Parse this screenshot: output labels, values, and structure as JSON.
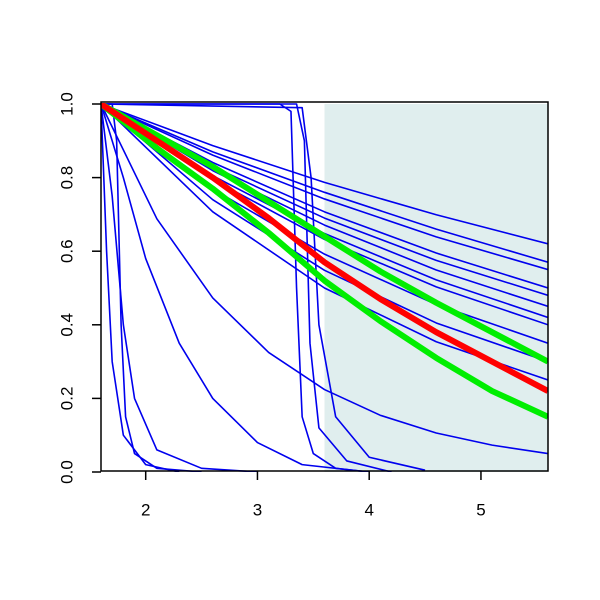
{
  "chart_data": {
    "type": "line",
    "xlim": [
      1.6,
      5.6
    ],
    "ylim": [
      0,
      1
    ],
    "xticks": [
      2,
      3,
      4,
      5
    ],
    "yticks": [
      {
        "value": 0,
        "label": "0.0"
      },
      {
        "value": 0.2,
        "label": "0.2"
      },
      {
        "value": 0.4,
        "label": "0.4"
      },
      {
        "value": 0.6,
        "label": "0.6"
      },
      {
        "value": 0.8,
        "label": "0.8"
      },
      {
        "value": 1,
        "label": "1.0"
      }
    ],
    "shaded_region": {
      "x": [
        3.6,
        5.6
      ],
      "y": [
        0,
        1
      ],
      "color": "#e0eeee"
    },
    "series": [
      {
        "color": "#0000ee",
        "x": [
          1.6,
          2.6,
          3.6,
          4.6,
          5.6
        ],
        "values": [
          1,
          0.887,
          0.787,
          0.699,
          0.62
        ]
      },
      {
        "color": "#0000ee",
        "x": [
          1.6,
          2.6,
          3.6,
          4.6,
          5.6
        ],
        "values": [
          1,
          0.87,
          0.76,
          0.66,
          0.57
        ]
      },
      {
        "color": "#0000ee",
        "x": [
          1.6,
          2.6,
          3.6,
          4.6,
          5.6
        ],
        "values": [
          1,
          0.861,
          0.742,
          0.639,
          0.55
        ]
      },
      {
        "color": "#0000ee",
        "x": [
          1.6,
          2.6,
          3.6,
          4.6,
          5.6
        ],
        "values": [
          1,
          0.841,
          0.707,
          0.595,
          0.5
        ]
      },
      {
        "color": "#0000ee",
        "x": [
          1.6,
          2.6,
          3.6,
          4.6,
          5.6
        ],
        "values": [
          1,
          0.83,
          0.69,
          0.575,
          0.48
        ]
      },
      {
        "color": "#0000ee",
        "x": [
          1.6,
          2.6,
          3.6,
          4.6,
          5.6
        ],
        "values": [
          1,
          0.819,
          0.671,
          0.549,
          0.45
        ]
      },
      {
        "color": "#0000ee",
        "x": [
          1.6,
          2.6,
          3.6,
          4.6,
          5.6
        ],
        "values": [
          1,
          0.805,
          0.648,
          0.522,
          0.42
        ]
      },
      {
        "color": "#0000ee",
        "x": [
          1.6,
          2.6,
          3.6,
          4.6,
          5.6
        ],
        "values": [
          1,
          0.795,
          0.632,
          0.503,
          0.4
        ]
      },
      {
        "color": "#0000ee",
        "x": [
          1.6,
          2.6,
          3.6,
          4.6,
          5.6
        ],
        "values": [
          1,
          0.769,
          0.592,
          0.455,
          0.35
        ]
      },
      {
        "color": "#0000ee",
        "x": [
          1.6,
          2.6,
          3.6,
          4.6,
          5.6
        ],
        "values": [
          1,
          0.74,
          0.548,
          0.405,
          0.3
        ]
      },
      {
        "color": "#0000ee",
        "x": [
          1.6,
          2.6,
          3.6,
          4.6,
          5.6
        ],
        "values": [
          1,
          0.707,
          0.5,
          0.354,
          0.25
        ]
      },
      {
        "color": "#0000ee",
        "x": [
          1.6,
          2.1,
          2.6,
          3.1,
          3.6,
          4.1,
          4.6,
          5.1,
          5.6
        ],
        "values": [
          1,
          0.688,
          0.473,
          0.325,
          0.224,
          0.154,
          0.106,
          0.073,
          0.05
        ]
      },
      {
        "color": "#0000ee",
        "x": [
          1.6,
          1.8,
          2.0,
          2.3,
          2.6,
          3.0,
          3.4,
          4.0
        ],
        "values": [
          1,
          0.8,
          0.58,
          0.35,
          0.2,
          0.08,
          0.02,
          0
        ]
      },
      {
        "color": "#0000ee",
        "x": [
          1.6,
          1.65,
          1.7,
          1.8,
          2.0,
          2.3
        ],
        "values": [
          1,
          0.6,
          0.3,
          0.1,
          0.02,
          0
        ]
      },
      {
        "color": "#0000ee",
        "x": [
          1.6,
          1.7,
          1.8,
          1.9,
          2.1,
          2.5,
          3.0
        ],
        "values": [
          1,
          0.75,
          0.4,
          0.2,
          0.06,
          0.01,
          0
        ]
      },
      {
        "color": "#0000ee",
        "x": [
          1.6,
          1.7,
          1.74,
          1.78,
          1.82,
          1.9,
          2.1,
          2.5
        ],
        "values": [
          1,
          1,
          0.9,
          0.4,
          0.15,
          0.05,
          0.01,
          0
        ]
      },
      {
        "color": "#0000ee",
        "x": [
          1.6,
          3.2,
          3.3,
          3.35,
          3.4,
          3.5,
          3.7,
          4.0
        ],
        "values": [
          1,
          1,
          0.98,
          0.5,
          0.15,
          0.05,
          0.01,
          0
        ]
      },
      {
        "color": "#0000ee",
        "x": [
          1.6,
          3.35,
          3.42,
          3.47,
          3.55,
          3.8,
          4.2
        ],
        "values": [
          1,
          1,
          0.9,
          0.35,
          0.12,
          0.03,
          0
        ]
      },
      {
        "color": "#0000ee",
        "x": [
          1.6,
          3.4,
          3.48,
          3.55,
          3.7,
          4.0,
          4.5
        ],
        "values": [
          1,
          0.99,
          0.8,
          0.4,
          0.15,
          0.04,
          0.005
        ]
      },
      {
        "color": "#00ee00",
        "emphasis": true,
        "x": [
          1.6,
          2.1,
          2.6,
          3.1,
          3.6,
          4.1,
          4.6,
          5.1,
          5.6
        ],
        "values": [
          1,
          0.915,
          0.83,
          0.735,
          0.64,
          0.545,
          0.46,
          0.38,
          0.3
        ]
      },
      {
        "color": "#00ee00",
        "emphasis": true,
        "x": [
          1.6,
          2.1,
          2.6,
          3.1,
          3.6,
          4.1,
          4.6,
          5.1,
          5.6
        ],
        "values": [
          1,
          0.88,
          0.77,
          0.65,
          0.52,
          0.41,
          0.31,
          0.22,
          0.15
        ]
      },
      {
        "color": "#ff0000",
        "emphasis": true,
        "x": [
          1.6,
          2.1,
          2.6,
          3.1,
          3.6,
          4.1,
          4.6,
          5.1,
          5.6
        ],
        "values": [
          1,
          0.9,
          0.8,
          0.69,
          0.57,
          0.47,
          0.38,
          0.3,
          0.22
        ]
      }
    ]
  }
}
